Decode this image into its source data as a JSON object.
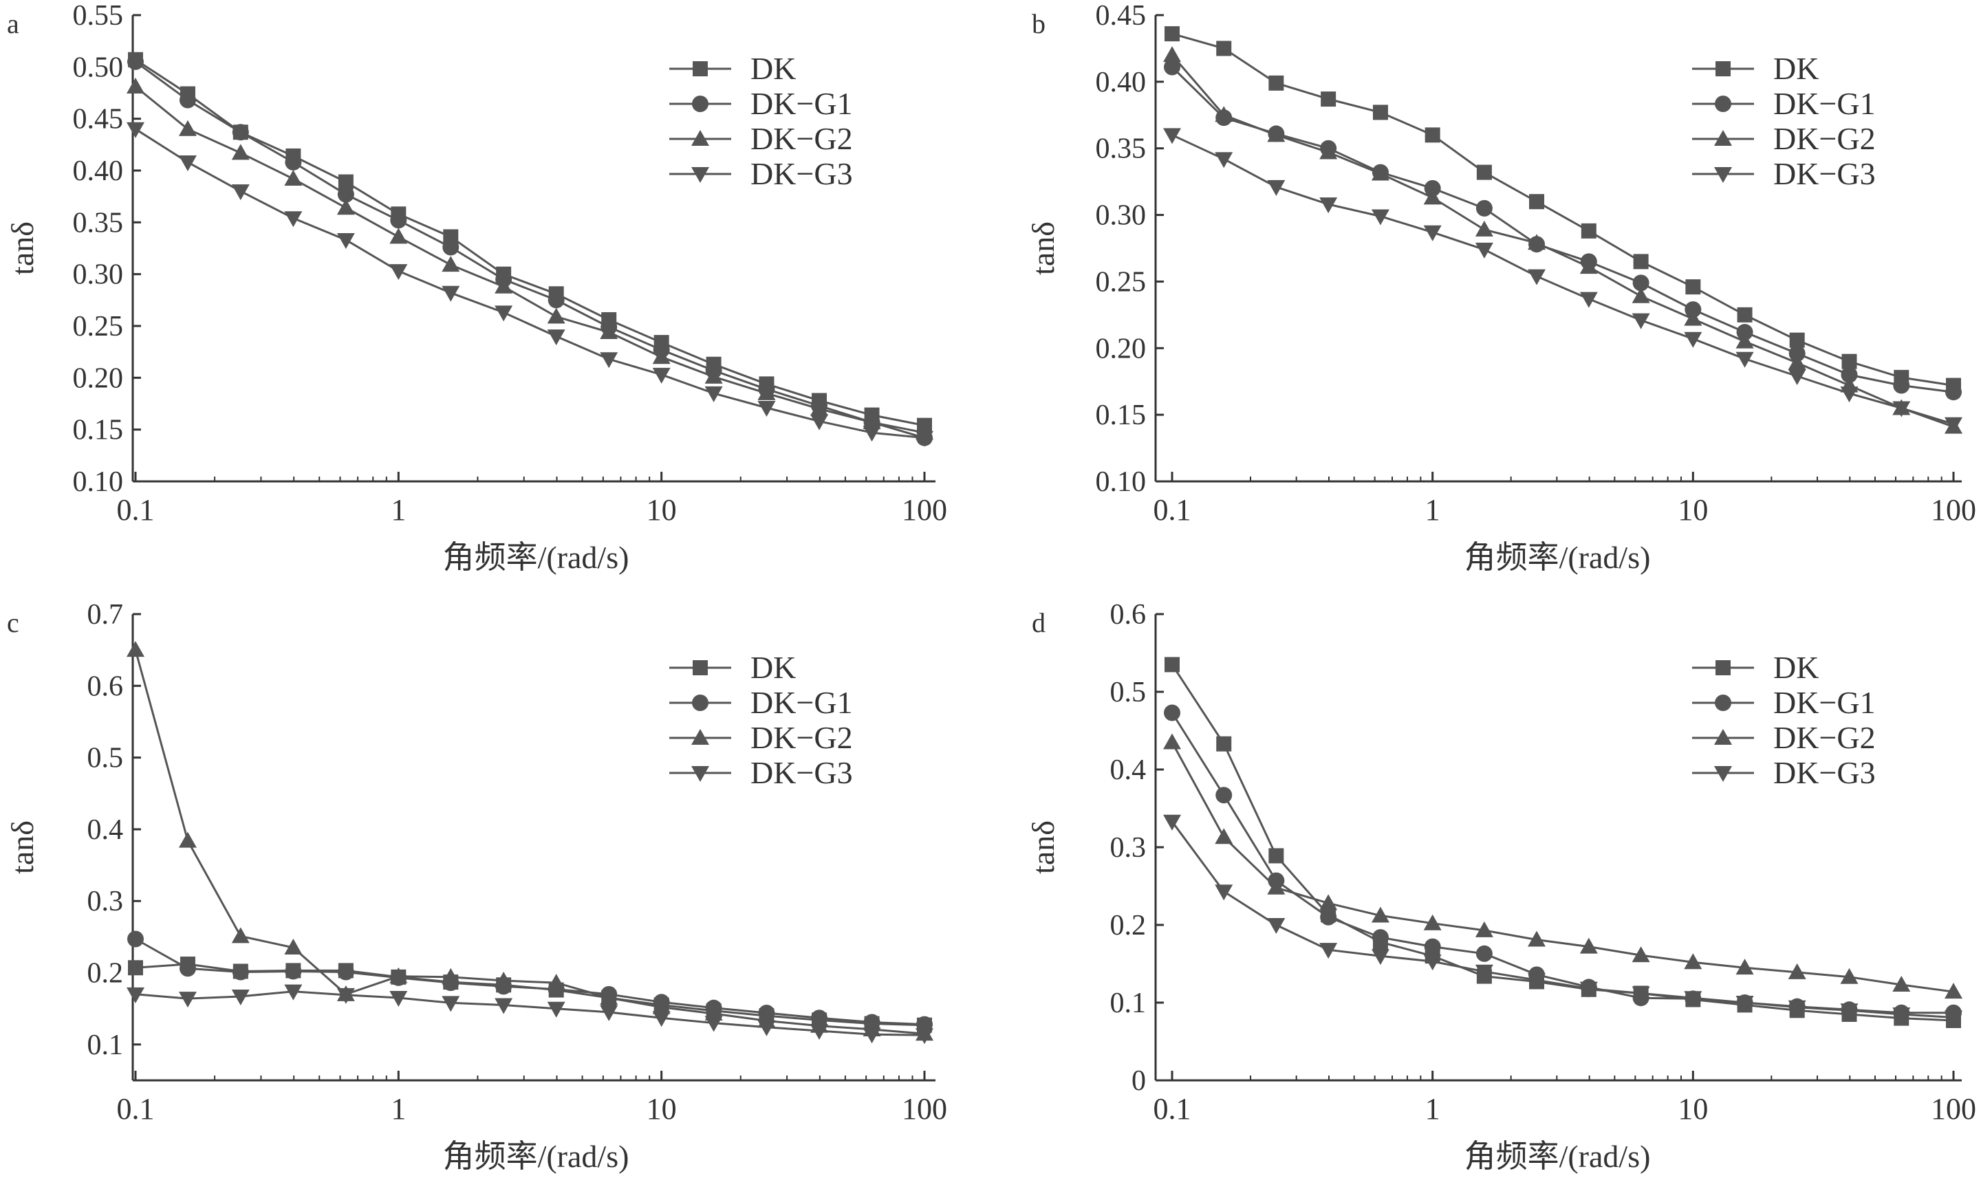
{
  "figure": {
    "colors": {
      "line": "#555555",
      "axis": "#333333",
      "text": "#333333"
    }
  },
  "chart_data": [
    {
      "panel": "a",
      "type": "line",
      "x_scale": "log",
      "xlabel": "角频率/(rad/s)",
      "ylabel": "tanδ",
      "xlim": [
        0.1,
        100
      ],
      "ylim": [
        0.1,
        0.55
      ],
      "x_ticks": [
        {
          "v": 0.1,
          "label": "0.1"
        },
        {
          "v": 1,
          "label": "1"
        },
        {
          "v": 10,
          "label": "10"
        },
        {
          "v": 100,
          "label": "100"
        }
      ],
      "y_ticks": [
        {
          "v": 0.1,
          "label": "0.10"
        },
        {
          "v": 0.15,
          "label": "0.15"
        },
        {
          "v": 0.2,
          "label": "0.20"
        },
        {
          "v": 0.25,
          "label": "0.25"
        },
        {
          "v": 0.3,
          "label": "0.30"
        },
        {
          "v": 0.35,
          "label": "0.35"
        },
        {
          "v": 0.4,
          "label": "0.40"
        },
        {
          "v": 0.45,
          "label": "0.45"
        },
        {
          "v": 0.5,
          "label": "0.50"
        },
        {
          "v": 0.55,
          "label": "0.55"
        }
      ],
      "legend_position": "top-right",
      "x": [
        0.1,
        0.158,
        0.251,
        0.398,
        0.631,
        1,
        1.58,
        2.51,
        3.98,
        6.31,
        10,
        15.8,
        25.1,
        39.8,
        63.1,
        100
      ],
      "series": [
        {
          "name": "DK",
          "marker": "square",
          "values": [
            0.507,
            0.474,
            0.437,
            0.414,
            0.389,
            0.358,
            0.336,
            0.3,
            0.281,
            0.256,
            0.234,
            0.213,
            0.194,
            0.178,
            0.164,
            0.154
          ]
        },
        {
          "name": "DK−G1",
          "marker": "circle",
          "values": [
            0.505,
            0.468,
            0.437,
            0.408,
            0.377,
            0.352,
            0.326,
            0.295,
            0.275,
            0.249,
            0.227,
            0.207,
            0.189,
            0.173,
            0.157,
            0.142
          ]
        },
        {
          "name": "DK−G2",
          "marker": "triangle-up",
          "values": [
            0.481,
            0.44,
            0.417,
            0.392,
            0.364,
            0.336,
            0.309,
            0.288,
            0.259,
            0.244,
            0.22,
            0.201,
            0.185,
            0.17,
            0.157,
            0.147
          ]
        },
        {
          "name": "DK−G3",
          "marker": "triangle-down",
          "values": [
            0.44,
            0.408,
            0.38,
            0.354,
            0.333,
            0.303,
            0.282,
            0.263,
            0.24,
            0.218,
            0.203,
            0.185,
            0.171,
            0.158,
            0.147,
            0.142
          ]
        }
      ]
    },
    {
      "panel": "b",
      "type": "line",
      "x_scale": "log",
      "xlabel": "角频率/(rad/s)",
      "ylabel": "tanδ",
      "xlim": [
        0.1,
        100
      ],
      "ylim": [
        0.1,
        0.45
      ],
      "x_ticks": [
        {
          "v": 0.1,
          "label": "0.1"
        },
        {
          "v": 1,
          "label": "1"
        },
        {
          "v": 10,
          "label": "10"
        },
        {
          "v": 100,
          "label": "100"
        }
      ],
      "y_ticks": [
        {
          "v": 0.1,
          "label": "0.10"
        },
        {
          "v": 0.15,
          "label": "0.15"
        },
        {
          "v": 0.2,
          "label": "0.20"
        },
        {
          "v": 0.25,
          "label": "0.25"
        },
        {
          "v": 0.3,
          "label": "0.30"
        },
        {
          "v": 0.35,
          "label": "0.35"
        },
        {
          "v": 0.4,
          "label": "0.40"
        },
        {
          "v": 0.45,
          "label": "0.45"
        }
      ],
      "legend_position": "top-right",
      "x": [
        0.1,
        0.158,
        0.251,
        0.398,
        0.631,
        1,
        1.58,
        2.51,
        3.98,
        6.31,
        10,
        15.8,
        25.1,
        39.8,
        63.1,
        100
      ],
      "series": [
        {
          "name": "DK",
          "marker": "square",
          "values": [
            0.436,
            0.425,
            0.399,
            0.387,
            0.377,
            0.36,
            0.332,
            0.31,
            0.288,
            0.265,
            0.246,
            0.225,
            0.206,
            0.19,
            0.178,
            0.172
          ]
        },
        {
          "name": "DK−G1",
          "marker": "circle",
          "values": [
            0.411,
            0.373,
            0.361,
            0.35,
            0.332,
            0.32,
            0.305,
            0.278,
            0.265,
            0.249,
            0.229,
            0.212,
            0.196,
            0.18,
            0.172,
            0.167
          ]
        },
        {
          "name": "DK−G2",
          "marker": "triangle-up",
          "values": [
            0.42,
            0.375,
            0.36,
            0.347,
            0.331,
            0.313,
            0.289,
            0.279,
            0.261,
            0.239,
            0.222,
            0.205,
            0.189,
            0.172,
            0.155,
            0.141
          ]
        },
        {
          "name": "DK−G3",
          "marker": "triangle-down",
          "values": [
            0.36,
            0.342,
            0.321,
            0.308,
            0.299,
            0.287,
            0.274,
            0.254,
            0.237,
            0.221,
            0.207,
            0.192,
            0.179,
            0.166,
            0.155,
            0.143
          ]
        }
      ]
    },
    {
      "panel": "c",
      "type": "line",
      "x_scale": "log",
      "xlabel": "角频率/(rad/s)",
      "ylabel": "tanδ",
      "xlim": [
        0.1,
        100
      ],
      "ylim": [
        0.05,
        0.7
      ],
      "x_ticks": [
        {
          "v": 0.1,
          "label": "0.1"
        },
        {
          "v": 1,
          "label": "1"
        },
        {
          "v": 10,
          "label": "10"
        },
        {
          "v": 100,
          "label": "100"
        }
      ],
      "y_ticks": [
        {
          "v": 0.1,
          "label": "0.1"
        },
        {
          "v": 0.2,
          "label": "0.2"
        },
        {
          "v": 0.3,
          "label": "0.3"
        },
        {
          "v": 0.4,
          "label": "0.4"
        },
        {
          "v": 0.5,
          "label": "0.5"
        },
        {
          "v": 0.6,
          "label": "0.6"
        },
        {
          "v": 0.7,
          "label": "0.7"
        }
      ],
      "legend_position": "top-right",
      "x": [
        0.1,
        0.158,
        0.251,
        0.398,
        0.631,
        1,
        1.58,
        2.51,
        3.98,
        6.31,
        10,
        15.8,
        25.1,
        39.8,
        63.1,
        100
      ],
      "series": [
        {
          "name": "DK",
          "marker": "square",
          "values": [
            0.207,
            0.212,
            0.202,
            0.203,
            0.203,
            0.194,
            0.187,
            0.183,
            0.176,
            0.165,
            0.155,
            0.147,
            0.14,
            0.134,
            0.129,
            0.127
          ]
        },
        {
          "name": "DK−G1",
          "marker": "circle",
          "values": [
            0.247,
            0.206,
            0.201,
            0.202,
            0.201,
            0.193,
            0.186,
            0.181,
            0.177,
            0.17,
            0.159,
            0.151,
            0.144,
            0.137,
            0.131,
            0.128
          ]
        },
        {
          "name": "DK−G2",
          "marker": "triangle-up",
          "values": [
            0.65,
            0.384,
            0.251,
            0.235,
            0.17,
            0.195,
            0.194,
            0.189,
            0.186,
            0.165,
            0.152,
            0.143,
            0.133,
            0.126,
            0.121,
            0.115
          ]
        },
        {
          "name": "DK−G3",
          "marker": "triangle-down",
          "values": [
            0.17,
            0.164,
            0.167,
            0.174,
            0.169,
            0.165,
            0.158,
            0.155,
            0.15,
            0.145,
            0.137,
            0.13,
            0.124,
            0.119,
            0.114,
            0.113
          ]
        }
      ]
    },
    {
      "panel": "d",
      "type": "line",
      "x_scale": "log",
      "xlabel": "角频率/(rad/s)",
      "ylabel": "tanδ",
      "xlim": [
        0.1,
        100
      ],
      "ylim": [
        0,
        0.6
      ],
      "x_ticks": [
        {
          "v": 0.1,
          "label": "0.1"
        },
        {
          "v": 1,
          "label": "1"
        },
        {
          "v": 10,
          "label": "10"
        },
        {
          "v": 100,
          "label": "100"
        }
      ],
      "y_ticks": [
        {
          "v": 0,
          "label": "0"
        },
        {
          "v": 0.1,
          "label": "0.1"
        },
        {
          "v": 0.2,
          "label": "0.2"
        },
        {
          "v": 0.3,
          "label": "0.3"
        },
        {
          "v": 0.4,
          "label": "0.4"
        },
        {
          "v": 0.5,
          "label": "0.5"
        },
        {
          "v": 0.6,
          "label": "0.6"
        }
      ],
      "legend_position": "top-right",
      "x": [
        0.1,
        0.158,
        0.251,
        0.398,
        0.631,
        1,
        1.58,
        2.51,
        3.98,
        6.31,
        10,
        15.8,
        25.1,
        39.8,
        63.1,
        100
      ],
      "series": [
        {
          "name": "DK",
          "marker": "square",
          "values": [
            0.535,
            0.433,
            0.289,
            0.213,
            0.178,
            0.16,
            0.134,
            0.127,
            0.117,
            0.112,
            0.104,
            0.097,
            0.09,
            0.085,
            0.08,
            0.077
          ]
        },
        {
          "name": "DK−G1",
          "marker": "circle",
          "values": [
            0.473,
            0.367,
            0.257,
            0.21,
            0.184,
            0.172,
            0.163,
            0.136,
            0.12,
            0.106,
            0.105,
            0.1,
            0.095,
            0.091,
            0.087,
            0.087
          ]
        },
        {
          "name": "DK−G2",
          "marker": "triangle-up",
          "values": [
            0.435,
            0.313,
            0.248,
            0.228,
            0.212,
            0.202,
            0.193,
            0.181,
            0.172,
            0.161,
            0.152,
            0.145,
            0.139,
            0.133,
            0.123,
            0.114
          ]
        },
        {
          "name": "DK−G3",
          "marker": "triangle-down",
          "values": [
            0.333,
            0.243,
            0.2,
            0.168,
            0.16,
            0.153,
            0.14,
            0.129,
            0.118,
            0.112,
            0.106,
            0.1,
            0.094,
            0.09,
            0.085,
            0.081
          ]
        }
      ]
    }
  ]
}
